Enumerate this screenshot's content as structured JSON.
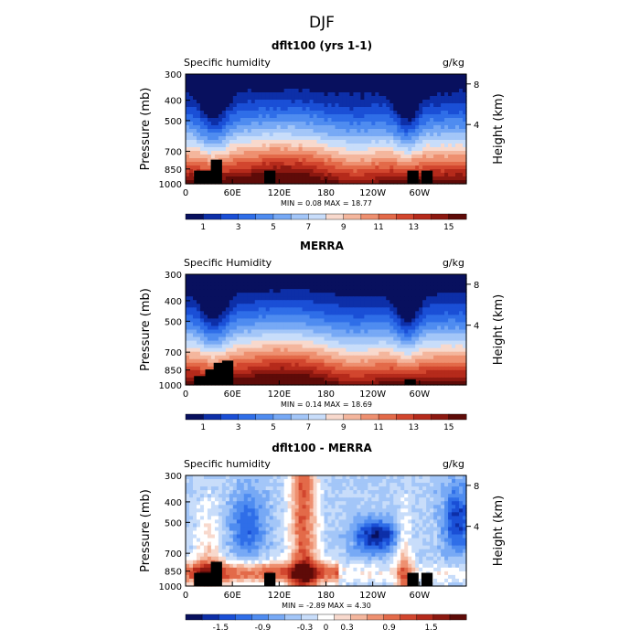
{
  "figure_title": "DJF",
  "chart_data": [
    {
      "type": "heatmap",
      "title": "dflt100 (yrs 1-1)",
      "left_label": "Specific humidity",
      "right_label": "g/kg",
      "ylabel": "Pressure (mb)",
      "y2label": "Height (km)",
      "x_ticks": [
        "0",
        "60E",
        "120E",
        "180",
        "120W",
        "60W"
      ],
      "y_ticks": [
        "300",
        "400",
        "500",
        "700",
        "850",
        "1000"
      ],
      "y2_ticks": [
        "8",
        "4"
      ],
      "stats": "MIN = 0.08 MAX = 18.77",
      "colorbar_labels": [
        "1",
        "3",
        "5",
        "7",
        "9",
        "11",
        "13",
        "15"
      ],
      "colorbar_colors": [
        "#08105e",
        "#0d2fa8",
        "#1a4fd6",
        "#2f6ee8",
        "#4f8cf0",
        "#77a9f5",
        "#a3c6f8",
        "#c8ddfa",
        "#f8d9cd",
        "#f4b69d",
        "#ee9070",
        "#e36a49",
        "#d2462e",
        "#b52a1b",
        "#8c1810",
        "#5e0b08"
      ],
      "colorbar_range": [
        0,
        16
      ]
    },
    {
      "type": "heatmap",
      "title": "MERRA",
      "left_label": "Specific Humidity",
      "right_label": "g/kg",
      "ylabel": "Pressure (mb)",
      "y2label": "Height (km)",
      "x_ticks": [
        "0",
        "60E",
        "120E",
        "180",
        "120W",
        "60W"
      ],
      "y_ticks": [
        "300",
        "400",
        "500",
        "700",
        "850",
        "1000"
      ],
      "y2_ticks": [
        "8",
        "4"
      ],
      "stats": "MIN = 0.14 MAX = 18.69",
      "colorbar_labels": [
        "1",
        "3",
        "5",
        "7",
        "9",
        "11",
        "13",
        "15"
      ],
      "colorbar_colors": [
        "#08105e",
        "#0d2fa8",
        "#1a4fd6",
        "#2f6ee8",
        "#4f8cf0",
        "#77a9f5",
        "#a3c6f8",
        "#c8ddfa",
        "#f8d9cd",
        "#f4b69d",
        "#ee9070",
        "#e36a49",
        "#d2462e",
        "#b52a1b",
        "#8c1810",
        "#5e0b08"
      ],
      "colorbar_range": [
        0,
        16
      ]
    },
    {
      "type": "heatmap",
      "title": "dflt100 - MERRA",
      "left_label": "Specific humidity",
      "right_label": "g/kg",
      "ylabel": "Pressure (mb)",
      "y2label": "Height (km)",
      "x_ticks": [
        "0",
        "60E",
        "120E",
        "180",
        "120W",
        "60W"
      ],
      "y_ticks": [
        "300",
        "400",
        "500",
        "700",
        "850",
        "1000"
      ],
      "y2_ticks": [
        "8",
        "4"
      ],
      "stats": "MIN = -2.89 MAX = 4.30",
      "colorbar_labels": [
        "-1.5",
        "-0.9",
        "-0.3",
        "0",
        "0.3",
        "0.9",
        "1.5"
      ],
      "colorbar_colors": [
        "#08105e",
        "#0d2fa8",
        "#1a4fd6",
        "#2f6ee8",
        "#4f8cf0",
        "#77a9f5",
        "#a3c6f8",
        "#c8ddfa",
        "#ffffff",
        "#f8d9cd",
        "#f4b69d",
        "#ee9070",
        "#e36a49",
        "#d2462e",
        "#b52a1b",
        "#8c1810",
        "#5e0b08"
      ],
      "colorbar_range": [
        -2,
        2
      ]
    }
  ]
}
